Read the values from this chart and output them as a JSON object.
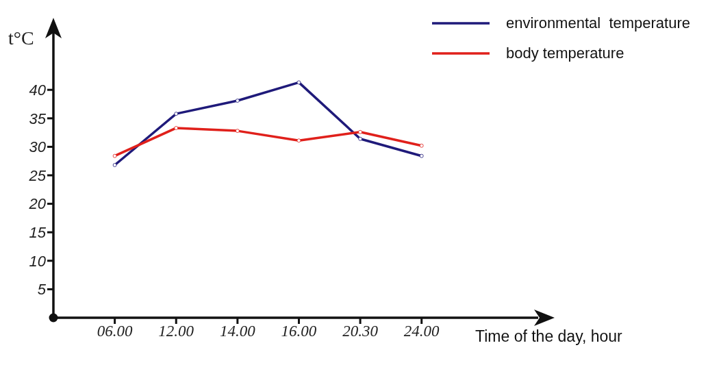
{
  "chart_data": {
    "type": "line",
    "ylabel": "t°C",
    "xlabel": "Time of the day, hour",
    "categories": [
      "06.00",
      "12.00",
      "14.00",
      "16.00",
      "20.30",
      "24.00"
    ],
    "series": [
      {
        "name": "environmental  temperature",
        "color": "#1f1a7a",
        "values": [
          26.8,
          35.8,
          38.1,
          41.3,
          31.4,
          28.4
        ]
      },
      {
        "name": "body temperature",
        "color": "#e0201b",
        "values": [
          28.4,
          33.3,
          32.8,
          31.1,
          32.6,
          30.2
        ]
      }
    ],
    "ylim": [
      0,
      50
    ],
    "yticks": [
      5,
      10,
      15,
      20,
      25,
      30,
      35,
      40
    ],
    "grid": false,
    "legend": "top right",
    "marker": "circle",
    "line_style": "solid"
  }
}
